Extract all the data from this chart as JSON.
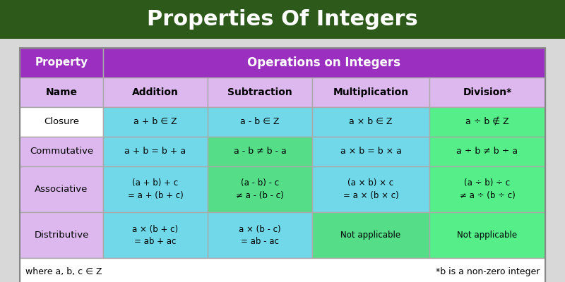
{
  "title": "Properties Of Integers",
  "title_bg": "#2d5a1b",
  "title_color": "#ffffff",
  "outer_bg": "#d8d8d8",
  "header_bg": "#9b30c0",
  "subheader_bg": "#ddb8ee",
  "row_name_bg": "#ddb8ee",
  "row_name_closure_bg": "#ffffff",
  "cyan": "#70d8e8",
  "green": "#55dd88",
  "white": "#ffffff",
  "light_green": "#66ee99",
  "cell_colors": [
    [
      "#ffffff",
      "#70d8e8",
      "#70d8e8",
      "#70d8e8",
      "#55ee88"
    ],
    [
      "#ddb8ee",
      "#70d8e8",
      "#55dd88",
      "#70d8e8",
      "#55ee88"
    ],
    [
      "#ddb8ee",
      "#70d8e8",
      "#55dd88",
      "#70d8e8",
      "#55ee88"
    ],
    [
      "#ddb8ee",
      "#ffffff",
      "#ffffff",
      "#55dd88",
      "#55dd88"
    ]
  ],
  "subheader_texts": [
    "Name",
    "Addition",
    "Subtraction",
    "Multiplication",
    "Division*"
  ],
  "row_names": [
    "Closure",
    "Commutative",
    "Associative",
    "Distributive"
  ],
  "cells": {
    "addition": [
      "a + b ∈ Z",
      "a + b = b + a",
      "(a + b) + c\n= a + (b + c)",
      "a × (b + c)\n= ab + ac"
    ],
    "subtraction": [
      "a - b ∈ Z",
      "a - b ≠ b - a",
      "(a - b) - c\n≠ a - (b - c)",
      "a × (b - c)\n= ab - ac"
    ],
    "multiplication": [
      "a × b ∈ Z",
      "a × b = b × a",
      "(a × b) × c\n= a × (b × c)",
      "Not applicable"
    ],
    "division": [
      "a ÷ b ∉ Z",
      "a ÷ b ≠ b ÷ a",
      "(a ÷ b) ÷ c\n≠ a ÷ (b ÷ c)",
      "Not applicable"
    ]
  },
  "footer_left": "where a, b, c ∈ Z",
  "footer_right": "*b is a non-zero integer"
}
